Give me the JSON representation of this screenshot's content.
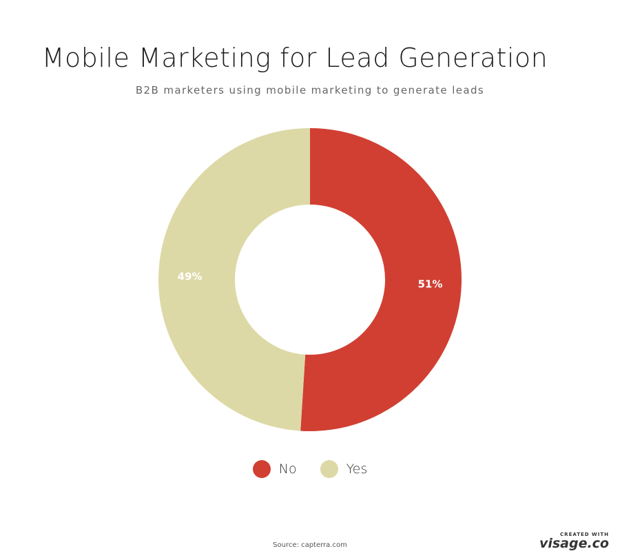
{
  "title": "Mobile Marketing for Lead Generation",
  "subtitle": "B2B marketers using mobile marketing to generate leads",
  "source": "Source: capterra.com",
  "branding": {
    "small": "CREATED WITH",
    "big": "visage.co"
  },
  "chart_data": {
    "type": "pie",
    "style": "donut",
    "title": "Mobile Marketing for Lead Generation",
    "subtitle": "B2B marketers using mobile marketing to generate leads",
    "slices": [
      {
        "label": "No",
        "value": 51,
        "display": "51%",
        "color": "#d13f33"
      },
      {
        "label": "Yes",
        "value": 49,
        "display": "49%",
        "color": "#ddd9a6"
      }
    ],
    "legend_position": "bottom",
    "unit": "%"
  }
}
